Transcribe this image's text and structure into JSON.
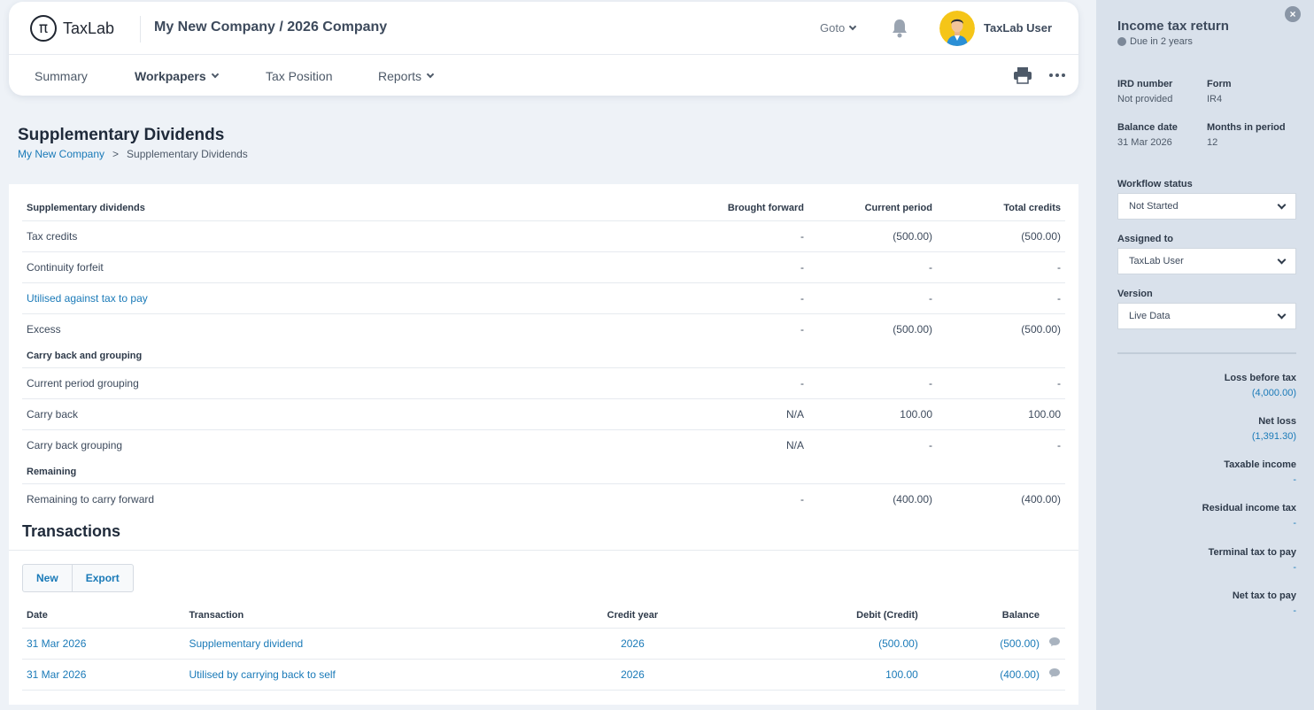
{
  "header": {
    "logo_symbol": "π",
    "logo_text": "TaxLab",
    "company": "My New Company / 2026 Company",
    "goto_label": "Goto",
    "user_name": "TaxLab User"
  },
  "nav": {
    "summary": "Summary",
    "workpapers": "Workpapers",
    "tax_position": "Tax Position",
    "reports": "Reports"
  },
  "page": {
    "title": "Supplementary Dividends",
    "breadcrumb": [
      "My New Company",
      ">",
      "Supplementary Dividends"
    ]
  },
  "sd_table": {
    "headers": [
      "Supplementary dividends",
      "Brought forward",
      "Current period",
      "Total credits"
    ],
    "rows": [
      {
        "label": "Tax credits",
        "bf": "-",
        "cp": "(500.00)",
        "tc": "(500.00)"
      },
      {
        "label": "Continuity forfeit",
        "bf": "-",
        "cp": "-",
        "tc": "-"
      },
      {
        "label": "Utilised against tax to pay",
        "bf": "-",
        "cp": "-",
        "tc": "-"
      },
      {
        "label": "Excess",
        "bf": "-",
        "cp": "(500.00)",
        "tc": "(500.00)"
      }
    ],
    "group2": "Carry back and grouping",
    "rows2": [
      {
        "label": "Current period grouping",
        "bf": "-",
        "cp": "-",
        "tc": "-"
      },
      {
        "label": "Carry back",
        "bf": "N/A",
        "cp": "100.00",
        "tc": "100.00"
      },
      {
        "label": "Carry back grouping",
        "bf": "N/A",
        "cp": "-",
        "tc": "-"
      }
    ],
    "group3": "Remaining",
    "rows3": [
      {
        "label": "Remaining to carry forward",
        "bf": "-",
        "cp": "(400.00)",
        "tc": "(400.00)"
      }
    ]
  },
  "transactions": {
    "title": "Transactions",
    "new_label": "New",
    "export_label": "Export",
    "headers": [
      "Date",
      "Transaction",
      "Credit year",
      "Debit (Credit)",
      "Balance"
    ],
    "rows": [
      {
        "date": "31 Mar 2026",
        "transaction": "Supplementary dividend",
        "credit_year": "2026",
        "debit": "(500.00)",
        "balance": "(500.00)"
      },
      {
        "date": "31 Mar 2026",
        "transaction": "Utilised by carrying back to self",
        "credit_year": "2026",
        "debit": "100.00",
        "balance": "(400.00)"
      }
    ]
  },
  "panel": {
    "close": "×",
    "title": "Income tax return",
    "due": "Due in 2 years",
    "ird_label": "IRD number",
    "ird_value": "Not provided",
    "form_label": "Form",
    "form_value": "IR4",
    "balance_label": "Balance date",
    "balance_value": "31 Mar 2026",
    "months_label": "Months in period",
    "months_value": "12",
    "workflow_label": "Workflow status",
    "workflow_value": "Not Started",
    "assigned_label": "Assigned to",
    "assigned_value": "TaxLab User",
    "version_label": "Version",
    "version_value": "Live Data",
    "summary": [
      {
        "label": "Loss before tax",
        "value": "(4,000.00)"
      },
      {
        "label": "Net loss",
        "value": "(1,391.30)"
      },
      {
        "label": "Taxable income",
        "value": "-"
      },
      {
        "label": "Residual income tax",
        "value": "-"
      },
      {
        "label": "Terminal tax to pay",
        "value": "-"
      },
      {
        "label": "Net tax to pay",
        "value": "-"
      }
    ]
  },
  "colors": {
    "accent": "#1a7ab8",
    "panel_bg": "#d9e1eb",
    "page_bg": "#eef2f7"
  }
}
